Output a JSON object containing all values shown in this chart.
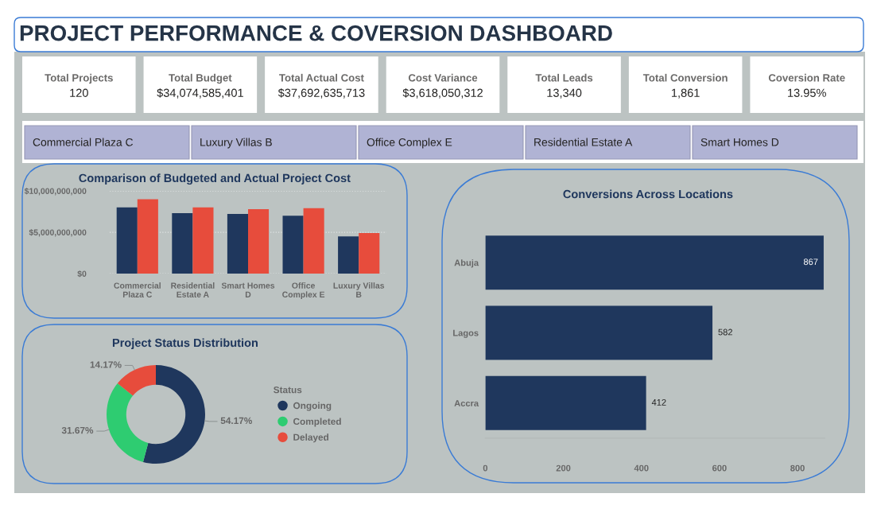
{
  "chart_data": [
    {
      "type": "other",
      "title": "PROJECT PERFORMANCE & COVERSION DASHBOARD",
      "annotations": [
        "Total Projects",
        "120",
        "Total Budget",
        "$34,074,585,401",
        "Total Actual Cost",
        "$37,692,635,713",
        "Cost Variance",
        "$3,618,050,312",
        "Total Leads",
        "13,340",
        "Total Conversion",
        "1,861",
        "Coversion Rate",
        "13.95%"
      ]
    },
    {
      "type": "other",
      "annotations": [
        "Commercial Plaza C",
        "Luxury Villas B",
        "Office Complex E",
        "Residential Estate A",
        "Smart Homes D"
      ]
    },
    {
      "type": "bar",
      "title": "Comparison of Budgeted and Actual Project Cost",
      "categories": [
        "Commercial Plaza C",
        "Residential Estate A",
        "Smart Homes D",
        "Office Complex E",
        "Luxury Villas B"
      ],
      "series": [
        {
          "color": "#1f375d",
          "values": [
            8000000000,
            7300000000,
            7200000000,
            7000000000,
            4500000000
          ]
        },
        {
          "color": "#e74c3c",
          "values": [
            9000000000,
            8000000000,
            7800000000,
            7900000000,
            4900000000
          ]
        }
      ],
      "ylim": [
        0,
        10000000000
      ],
      "yticks": [
        {
          "value": 0,
          "label": "$0"
        },
        {
          "value": 5000000000,
          "label": "$5,000,000,000"
        },
        {
          "value": 10000000000,
          "label": "$10,000,000,000"
        }
      ],
      "grid": "y"
    },
    {
      "type": "donut",
      "title": "Project Status Distribution",
      "categories": [
        "Ongoing",
        "Completed",
        "Delayed"
      ],
      "values": [
        54.17,
        31.67,
        14.17
      ],
      "colors": [
        "#1f375d",
        "#2ecc71",
        "#e74c3c"
      ],
      "value_labels": [
        "54.17%",
        "31.67%",
        "14.17%"
      ],
      "legend_title": "Status",
      "legend": "right"
    },
    {
      "type": "bar",
      "orientation": "horizontal",
      "title": "Conversions Across Locations",
      "categories": [
        "Abuja",
        "Lagos",
        "Accra"
      ],
      "values": [
        867,
        582,
        412
      ],
      "color": "#1f375d",
      "xlim": [
        0,
        870
      ],
      "xticks": [
        0,
        200,
        400,
        600,
        800
      ],
      "data_labels": true
    }
  ]
}
